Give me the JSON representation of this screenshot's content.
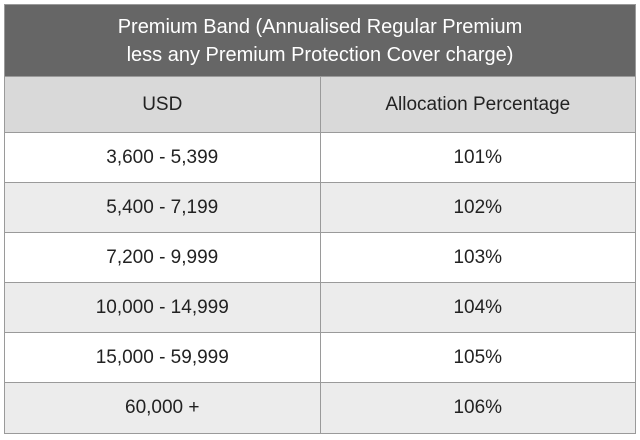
{
  "table": {
    "title_line1": "Premium Band (Annualised Regular Premium",
    "title_line2": "less any Premium Protection Cover charge)",
    "columns": [
      "USD",
      "Allocation Percentage"
    ],
    "rows": [
      {
        "usd": "3,600 - 5,399",
        "allocation": "101%"
      },
      {
        "usd": "5,400 - 7,199",
        "allocation": "102%"
      },
      {
        "usd": "7,200 - 9,999",
        "allocation": "103%"
      },
      {
        "usd": "10,000 - 14,999",
        "allocation": "104%"
      },
      {
        "usd": "15,000 - 59,999",
        "allocation": "105%"
      },
      {
        "usd": "60,000 +",
        "allocation": "106%"
      }
    ],
    "colors": {
      "title_bg": "#666666",
      "header_bg": "#d9d9d9",
      "shaded_row_bg": "#ececec",
      "border": "#9a9a9a"
    }
  }
}
